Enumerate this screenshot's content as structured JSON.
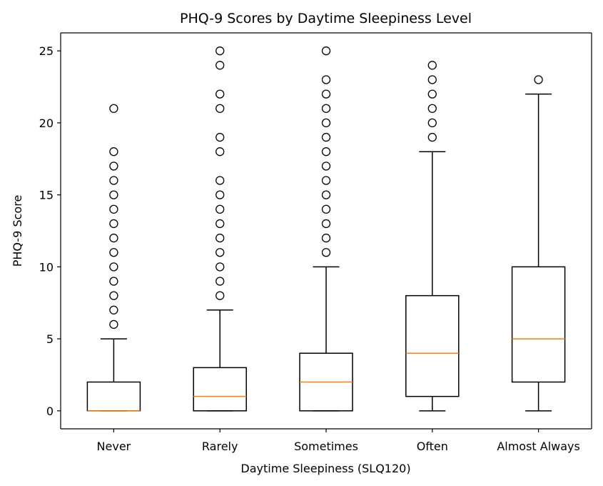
{
  "chart_data": {
    "type": "box",
    "title": "PHQ-9 Scores by Daytime Sleepiness Level",
    "xlabel": "Daytime Sleepiness (SLQ120)",
    "ylabel": "PHQ-9 Score",
    "ylim": [
      -1.25,
      26.25
    ],
    "yticks": [
      0,
      5,
      10,
      15,
      20,
      25
    ],
    "grid": false,
    "colors": {
      "box": "#000000",
      "median": "#ff7f0e",
      "flier": "#000000"
    },
    "categories": [
      "Never",
      "Rarely",
      "Sometimes",
      "Often",
      "Almost Always"
    ],
    "boxes": [
      {
        "category": "Never",
        "whisker_low": 0,
        "q1": 0,
        "median": 0,
        "q3": 2,
        "whisker_high": 5,
        "fliers": [
          6,
          7,
          8,
          9,
          10,
          11,
          12,
          13,
          14,
          15,
          16,
          17,
          18,
          21
        ]
      },
      {
        "category": "Rarely",
        "whisker_low": 0,
        "q1": 0,
        "median": 1,
        "q3": 3,
        "whisker_high": 7,
        "fliers": [
          8,
          9,
          10,
          11,
          12,
          13,
          14,
          15,
          16,
          18,
          19,
          21,
          22,
          24,
          25
        ]
      },
      {
        "category": "Sometimes",
        "whisker_low": 0,
        "q1": 0,
        "median": 2,
        "q3": 4,
        "whisker_high": 10,
        "fliers": [
          11,
          12,
          13,
          14,
          15,
          16,
          17,
          18,
          19,
          20,
          21,
          22,
          23,
          25
        ]
      },
      {
        "category": "Often",
        "whisker_low": 0,
        "q1": 1,
        "median": 4,
        "q3": 8,
        "whisker_high": 18,
        "fliers": [
          19,
          20,
          21,
          22,
          23,
          24
        ]
      },
      {
        "category": "Almost Always",
        "whisker_low": 0,
        "q1": 2,
        "median": 5,
        "q3": 10,
        "whisker_high": 22,
        "fliers": [
          23
        ]
      }
    ]
  }
}
